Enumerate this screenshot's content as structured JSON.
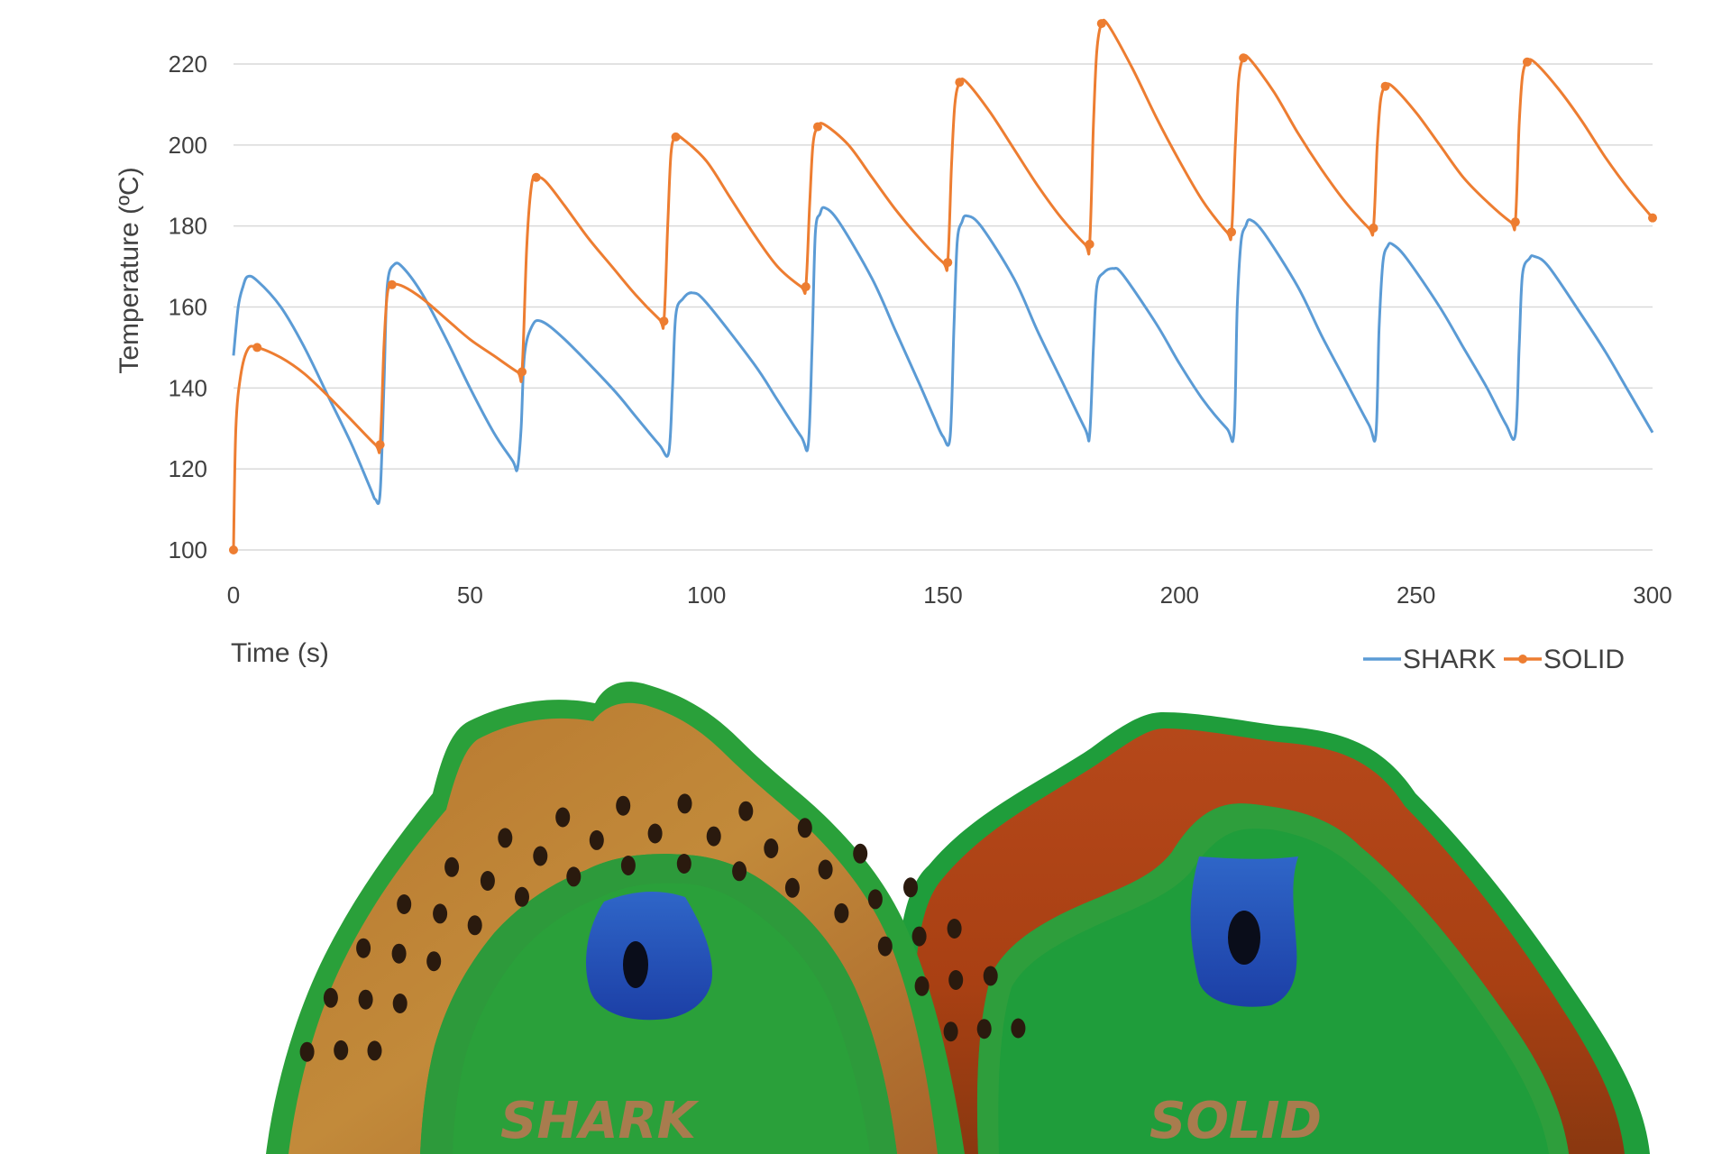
{
  "chart_data": {
    "type": "line",
    "xlabel": "Time (s)",
    "ylabel": "Temperature (ºC)",
    "xlim": [
      0,
      300
    ],
    "ylim": [
      100,
      220
    ],
    "xticks": [
      0,
      50,
      100,
      150,
      200,
      250,
      300
    ],
    "yticks": [
      100,
      120,
      140,
      160,
      180,
      200,
      220
    ],
    "grid": "horizontal",
    "legend_position": "bottom-right",
    "series": [
      {
        "name": "SHARK",
        "color": "#5b9bd5",
        "markers": false,
        "points": [
          [
            0,
            148
          ],
          [
            1,
            160
          ],
          [
            2,
            165
          ],
          [
            3,
            167.5
          ],
          [
            5,
            166.5
          ],
          [
            10,
            160
          ],
          [
            15,
            150
          ],
          [
            20,
            138
          ],
          [
            25,
            126
          ],
          [
            29,
            115
          ],
          [
            30,
            112.5
          ],
          [
            31,
            114
          ],
          [
            31.8,
            140
          ],
          [
            32.5,
            165
          ],
          [
            34,
            170.5
          ],
          [
            36,
            169.5
          ],
          [
            40,
            163
          ],
          [
            45,
            152
          ],
          [
            50,
            140
          ],
          [
            55,
            129
          ],
          [
            59,
            122
          ],
          [
            60,
            120
          ],
          [
            60.8,
            130
          ],
          [
            61.5,
            148
          ],
          [
            63,
            155
          ],
          [
            65,
            156.5
          ],
          [
            70,
            152
          ],
          [
            80,
            140
          ],
          [
            85,
            133
          ],
          [
            90,
            126
          ],
          [
            92,
            124
          ],
          [
            92.8,
            140
          ],
          [
            93.5,
            158
          ],
          [
            95,
            162
          ],
          [
            97,
            163.5
          ],
          [
            100,
            161
          ],
          [
            110,
            146
          ],
          [
            115,
            137
          ],
          [
            120,
            128
          ],
          [
            121.5,
            126
          ],
          [
            122.3,
            150
          ],
          [
            123,
            178
          ],
          [
            124,
            183
          ],
          [
            125,
            184.5
          ],
          [
            128,
            181
          ],
          [
            135,
            167
          ],
          [
            140,
            154
          ],
          [
            145,
            141
          ],
          [
            148,
            133
          ],
          [
            150,
            128
          ],
          [
            151.5,
            128
          ],
          [
            152.3,
            155
          ],
          [
            153,
            176
          ],
          [
            154,
            181
          ],
          [
            155,
            182.5
          ],
          [
            158,
            180
          ],
          [
            165,
            167
          ],
          [
            170,
            154
          ],
          [
            175,
            142
          ],
          [
            180,
            130
          ],
          [
            181,
            128.5
          ],
          [
            181.8,
            150
          ],
          [
            182.5,
            165
          ],
          [
            184,
            168.5
          ],
          [
            186,
            169.5
          ],
          [
            188,
            168
          ],
          [
            195,
            156
          ],
          [
            200,
            146
          ],
          [
            205,
            137
          ],
          [
            210,
            130
          ],
          [
            211.5,
            129
          ],
          [
            212.2,
            160
          ],
          [
            213,
            176
          ],
          [
            214,
            180
          ],
          [
            215,
            181.5
          ],
          [
            218,
            178
          ],
          [
            225,
            165
          ],
          [
            230,
            153
          ],
          [
            235,
            142
          ],
          [
            240,
            131
          ],
          [
            241.5,
            128.5
          ],
          [
            242.2,
            155
          ],
          [
            243,
            171
          ],
          [
            244,
            175
          ],
          [
            245,
            175.5
          ],
          [
            248,
            172
          ],
          [
            255,
            160
          ],
          [
            260,
            150
          ],
          [
            265,
            140
          ],
          [
            269,
            131
          ],
          [
            271,
            128.5
          ],
          [
            271.8,
            150
          ],
          [
            272.5,
            168
          ],
          [
            274,
            172
          ],
          [
            275,
            172.5
          ],
          [
            278,
            170
          ],
          [
            285,
            158
          ],
          [
            290,
            149
          ],
          [
            295,
            139
          ],
          [
            300,
            129
          ]
        ]
      },
      {
        "name": "SOLID",
        "color": "#ed7d31",
        "markers": true,
        "points": [
          [
            0,
            100
          ],
          [
            0.5,
            130
          ],
          [
            1.5,
            143
          ],
          [
            3,
            149.5
          ],
          [
            5,
            150
          ],
          [
            10,
            147.5
          ],
          [
            15,
            143.5
          ],
          [
            20,
            138
          ],
          [
            25,
            132
          ],
          [
            30,
            126
          ],
          [
            31,
            126
          ],
          [
            31.8,
            150
          ],
          [
            32.5,
            163
          ],
          [
            33.5,
            165.5
          ],
          [
            36,
            165
          ],
          [
            40,
            162
          ],
          [
            45,
            157
          ],
          [
            50,
            152
          ],
          [
            55,
            148
          ],
          [
            60,
            144
          ],
          [
            61,
            144
          ],
          [
            62,
            175
          ],
          [
            63,
            190
          ],
          [
            64,
            192
          ],
          [
            66,
            191
          ],
          [
            70,
            185
          ],
          [
            75,
            177
          ],
          [
            80,
            170
          ],
          [
            85,
            163
          ],
          [
            90,
            157
          ],
          [
            91,
            156.5
          ],
          [
            91.8,
            180
          ],
          [
            92.5,
            198
          ],
          [
            93.5,
            202
          ],
          [
            95,
            201.5
          ],
          [
            100,
            196
          ],
          [
            105,
            187
          ],
          [
            110,
            178
          ],
          [
            115,
            170
          ],
          [
            120,
            165
          ],
          [
            121,
            165
          ],
          [
            121.8,
            185
          ],
          [
            122.5,
            200
          ],
          [
            123.5,
            204.5
          ],
          [
            125,
            205
          ],
          [
            130,
            200
          ],
          [
            135,
            192
          ],
          [
            140,
            184
          ],
          [
            145,
            177
          ],
          [
            150,
            171
          ],
          [
            151,
            171
          ],
          [
            151.8,
            195
          ],
          [
            152.5,
            210
          ],
          [
            153.5,
            215.5
          ],
          [
            155,
            215.5
          ],
          [
            160,
            208
          ],
          [
            165,
            199
          ],
          [
            170,
            190
          ],
          [
            175,
            182
          ],
          [
            180,
            175.5
          ],
          [
            181,
            175.5
          ],
          [
            181.8,
            205
          ],
          [
            182.5,
            223
          ],
          [
            183.5,
            230
          ],
          [
            185,
            229.5
          ],
          [
            190,
            219
          ],
          [
            195,
            207
          ],
          [
            200,
            196
          ],
          [
            205,
            186
          ],
          [
            210,
            178.5
          ],
          [
            211,
            178.5
          ],
          [
            211.8,
            200
          ],
          [
            212.5,
            216
          ],
          [
            213.5,
            221.5
          ],
          [
            215,
            221
          ],
          [
            220,
            213
          ],
          [
            225,
            203
          ],
          [
            230,
            194
          ],
          [
            235,
            186
          ],
          [
            240,
            179.5
          ],
          [
            241,
            179.5
          ],
          [
            241.8,
            200
          ],
          [
            242.5,
            211
          ],
          [
            243.5,
            214.5
          ],
          [
            245,
            214.5
          ],
          [
            250,
            208
          ],
          [
            255,
            200
          ],
          [
            260,
            192
          ],
          [
            265,
            186
          ],
          [
            270,
            181
          ],
          [
            271,
            181
          ],
          [
            271.8,
            205
          ],
          [
            272.5,
            217
          ],
          [
            273.5,
            220.5
          ],
          [
            275,
            220.5
          ],
          [
            280,
            214
          ],
          [
            285,
            206
          ],
          [
            290,
            197
          ],
          [
            295,
            189
          ],
          [
            300,
            182
          ]
        ],
        "marker_x": [
          0,
          5,
          31,
          33.5,
          61,
          64,
          91,
          93.5,
          121,
          123.5,
          151,
          153.5,
          181,
          183.5,
          211,
          213.5,
          241,
          243.5,
          271,
          273.5,
          300
        ]
      }
    ]
  },
  "image_labels": {
    "shark": "SHARK",
    "solid": "SOLID"
  }
}
